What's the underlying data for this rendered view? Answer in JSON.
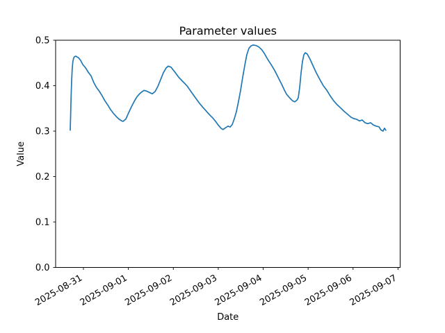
{
  "figure": {
    "background": "#ffffff",
    "spine_color": "#000000",
    "text_color": "#000000"
  },
  "chart_data": {
    "type": "line",
    "title": "Parameter values",
    "xlabel": "Date",
    "ylabel": "Value",
    "grid": false,
    "legend": null,
    "line_color": "#1f77b4",
    "axes": {
      "ylim": [
        0.0,
        0.5
      ],
      "y_tick_values": [
        0.0,
        0.1,
        0.2,
        0.3,
        0.4,
        0.5
      ],
      "y_tick_labels": [
        "0.0",
        "0.1",
        "0.2",
        "0.3",
        "0.4",
        "0.5"
      ],
      "x_tick_labels": [
        "2025-08-31",
        "2025-09-01",
        "2025-09-02",
        "2025-09-03",
        "2025-09-04",
        "2025-09-05",
        "2025-09-06",
        "2025-09-07"
      ],
      "x_tick_day_offsets": [
        0,
        1,
        2,
        3,
        4,
        5,
        6,
        7
      ],
      "xlim_day_offsets": [
        -0.619,
        7.048
      ],
      "x_tick_rotation_deg": 30,
      "x_unit_note": "day offset from 2025-08-31"
    },
    "series": [
      {
        "name": "parameter-values",
        "color": "#1f77b4",
        "points_day_value": [
          [
            -0.294,
            0.302
          ],
          [
            -0.285,
            0.335
          ],
          [
            -0.275,
            0.375
          ],
          [
            -0.263,
            0.41
          ],
          [
            -0.25,
            0.437
          ],
          [
            -0.237,
            0.452
          ],
          [
            -0.22,
            0.46
          ],
          [
            -0.201,
            0.4635
          ],
          [
            -0.17,
            0.465
          ],
          [
            -0.139,
            0.463
          ],
          [
            -0.108,
            0.4615
          ],
          [
            -0.062,
            0.4555
          ],
          [
            -0.015,
            0.4465
          ],
          [
            0.046,
            0.4395
          ],
          [
            0.108,
            0.4295
          ],
          [
            0.17,
            0.4215
          ],
          [
            0.232,
            0.4065
          ],
          [
            0.294,
            0.3955
          ],
          [
            0.355,
            0.3875
          ],
          [
            0.417,
            0.3775
          ],
          [
            0.479,
            0.3665
          ],
          [
            0.541,
            0.3575
          ],
          [
            0.603,
            0.3475
          ],
          [
            0.665,
            0.3395
          ],
          [
            0.727,
            0.3325
          ],
          [
            0.789,
            0.3265
          ],
          [
            0.851,
            0.3225
          ],
          [
            0.882,
            0.3215
          ],
          [
            0.944,
            0.3265
          ],
          [
            1.006,
            0.3405
          ],
          [
            1.068,
            0.3535
          ],
          [
            1.13,
            0.3655
          ],
          [
            1.191,
            0.3755
          ],
          [
            1.253,
            0.3825
          ],
          [
            1.315,
            0.3875
          ],
          [
            1.346,
            0.3895
          ],
          [
            1.408,
            0.388
          ],
          [
            1.47,
            0.385
          ],
          [
            1.532,
            0.382
          ],
          [
            1.594,
            0.387
          ],
          [
            1.656,
            0.3985
          ],
          [
            1.718,
            0.4135
          ],
          [
            1.779,
            0.4285
          ],
          [
            1.841,
            0.439
          ],
          [
            1.888,
            0.443
          ],
          [
            1.95,
            0.4405
          ],
          [
            2.027,
            0.431
          ],
          [
            2.12,
            0.4185
          ],
          [
            2.213,
            0.409
          ],
          [
            2.306,
            0.3995
          ],
          [
            2.398,
            0.3865
          ],
          [
            2.491,
            0.3735
          ],
          [
            2.584,
            0.361
          ],
          [
            2.661,
            0.352
          ],
          [
            2.739,
            0.3435
          ],
          [
            2.816,
            0.335
          ],
          [
            2.878,
            0.329
          ],
          [
            2.94,
            0.3215
          ],
          [
            3.002,
            0.313
          ],
          [
            3.064,
            0.306
          ],
          [
            3.11,
            0.3035
          ],
          [
            3.156,
            0.307
          ],
          [
            3.218,
            0.311
          ],
          [
            3.265,
            0.309
          ],
          [
            3.311,
            0.3145
          ],
          [
            3.357,
            0.327
          ],
          [
            3.404,
            0.343
          ],
          [
            3.45,
            0.365
          ],
          [
            3.496,
            0.389
          ],
          [
            3.543,
            0.418
          ],
          [
            3.589,
            0.444
          ],
          [
            3.635,
            0.468
          ],
          [
            3.682,
            0.482
          ],
          [
            3.728,
            0.4875
          ],
          [
            3.775,
            0.4895
          ],
          [
            3.837,
            0.4885
          ],
          [
            3.899,
            0.4855
          ],
          [
            3.961,
            0.48
          ],
          [
            4.023,
            0.4715
          ],
          [
            4.1,
            0.458
          ],
          [
            4.177,
            0.4465
          ],
          [
            4.255,
            0.4335
          ],
          [
            4.332,
            0.4185
          ],
          [
            4.409,
            0.4035
          ],
          [
            4.471,
            0.3905
          ],
          [
            4.518,
            0.3815
          ],
          [
            4.564,
            0.376
          ],
          [
            4.61,
            0.371
          ],
          [
            4.657,
            0.3665
          ],
          [
            4.703,
            0.3645
          ],
          [
            4.75,
            0.368
          ],
          [
            4.781,
            0.3735
          ],
          [
            4.812,
            0.396
          ],
          [
            4.843,
            0.428
          ],
          [
            4.874,
            0.453
          ],
          [
            4.905,
            0.468
          ],
          [
            4.936,
            0.4725
          ],
          [
            4.982,
            0.4695
          ],
          [
            5.044,
            0.458
          ],
          [
            5.106,
            0.4445
          ],
          [
            5.183,
            0.428
          ],
          [
            5.261,
            0.4135
          ],
          [
            5.338,
            0.4
          ],
          [
            5.415,
            0.39
          ],
          [
            5.492,
            0.3775
          ],
          [
            5.57,
            0.3665
          ],
          [
            5.647,
            0.358
          ],
          [
            5.724,
            0.351
          ],
          [
            5.801,
            0.3435
          ],
          [
            5.879,
            0.337
          ],
          [
            5.956,
            0.3305
          ],
          [
            6.018,
            0.3275
          ],
          [
            6.08,
            0.326
          ],
          [
            6.142,
            0.3225
          ],
          [
            6.204,
            0.3245
          ],
          [
            6.266,
            0.3185
          ],
          [
            6.328,
            0.3165
          ],
          [
            6.39,
            0.3185
          ],
          [
            6.452,
            0.3135
          ],
          [
            6.514,
            0.311
          ],
          [
            6.576,
            0.3095
          ],
          [
            6.622,
            0.3025
          ],
          [
            6.668,
            0.3
          ],
          [
            6.699,
            0.3065
          ],
          [
            6.73,
            0.302
          ]
        ]
      }
    ]
  }
}
